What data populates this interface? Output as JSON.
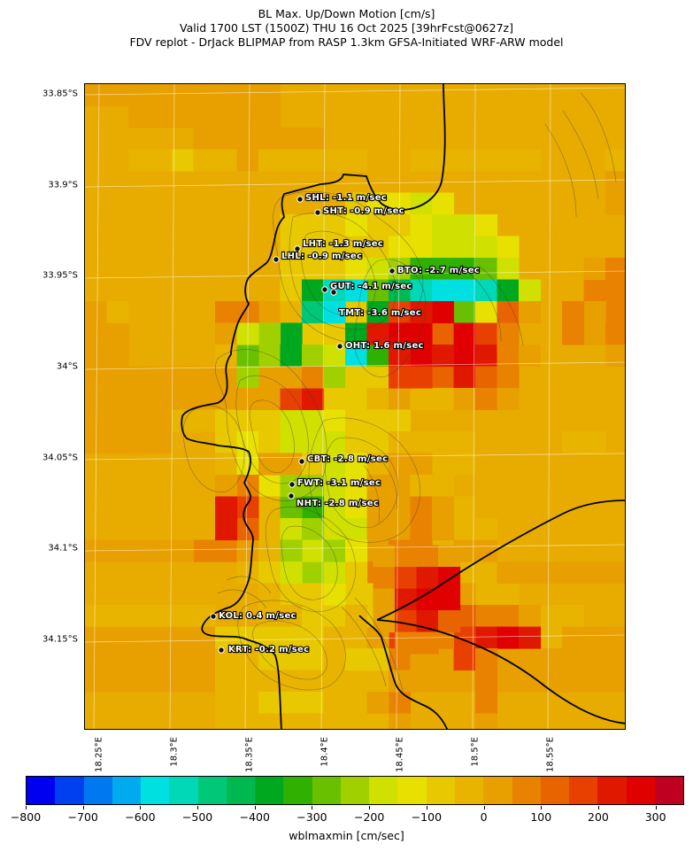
{
  "title": {
    "line1": "BL Max. Up/Down Motion [cm/s]",
    "line2": "Valid 1700 LST (1500Z) THU 16 Oct 2025 [39hrFcst@0627z]",
    "line3": "FDV replot - DrJack BLIPMAP from RASP 1.3km GFSA-Initiated WRF-ARW model"
  },
  "axes": {
    "lat_labels": [
      "33.85°S",
      "33.9°S",
      "33.95°S",
      "34°S",
      "34.05°S",
      "34.1°S",
      "34.15°S"
    ],
    "lon_labels": [
      "18.25°E",
      "18.3°E",
      "18.35°E",
      "18.4°E",
      "18.45°E",
      "18.5°E",
      "18.55°E"
    ]
  },
  "stations": [
    {
      "code": "SHL",
      "label": "SHL: -1.1 m/sec",
      "value": -1.1
    },
    {
      "code": "SHT",
      "label": "SHT: -0.9 m/sec",
      "value": -0.9
    },
    {
      "code": "LHT",
      "label": "LHT: -1.3 m/sec",
      "value": -1.3
    },
    {
      "code": "LHL",
      "label": "LHL: -0.9 m/sec",
      "value": -0.9
    },
    {
      "code": "BTO",
      "label": "BTO: -2.7 m/sec",
      "value": -2.7
    },
    {
      "code": "GUT",
      "label": "GUT: -4.1 m/sec",
      "value": -4.1
    },
    {
      "code": "TMT",
      "label": "TMT: -3.6 m/sec",
      "value": -3.6
    },
    {
      "code": "OHT",
      "label": "OHT: 1.6 m/sec",
      "value": 1.6
    },
    {
      "code": "CBT",
      "label": "CBT: -2.8 m/sec",
      "value": -2.8
    },
    {
      "code": "FWT",
      "label": "FWT: -3.1 m/sec",
      "value": -3.1
    },
    {
      "code": "NHT",
      "label": "NHT: -2.8 m/sec",
      "value": -2.8
    },
    {
      "code": "KOL",
      "label": "KOL: 0.4 m/sec",
      "value": 0.4
    },
    {
      "code": "KRT",
      "label": "KRT: -0.2 m/sec",
      "value": -0.2
    }
  ],
  "colorbar": {
    "label": "wblmaxmin [cm/sec]",
    "tick_labels": [
      "−800",
      "−700",
      "−600",
      "−500",
      "−400",
      "−300",
      "−200",
      "−100",
      "0",
      "100",
      "200",
      "300"
    ],
    "colors": [
      "#0000f0",
      "#0040f0",
      "#0078f0",
      "#00aaee",
      "#00e0e0",
      "#00d8b8",
      "#00c878",
      "#00b850",
      "#00a820",
      "#30b000",
      "#68c000",
      "#a0d000",
      "#d0e000",
      "#e8e000",
      "#e8c800",
      "#e8b400",
      "#e8a000",
      "#e88200",
      "#e86400",
      "#e84000",
      "#e01800",
      "#e00000",
      "#c00020"
    ]
  },
  "map_colors": {
    "background": "#e8ac00",
    "coast": "#000000",
    "contour": "#555555",
    "grid": "#ffffff"
  }
}
